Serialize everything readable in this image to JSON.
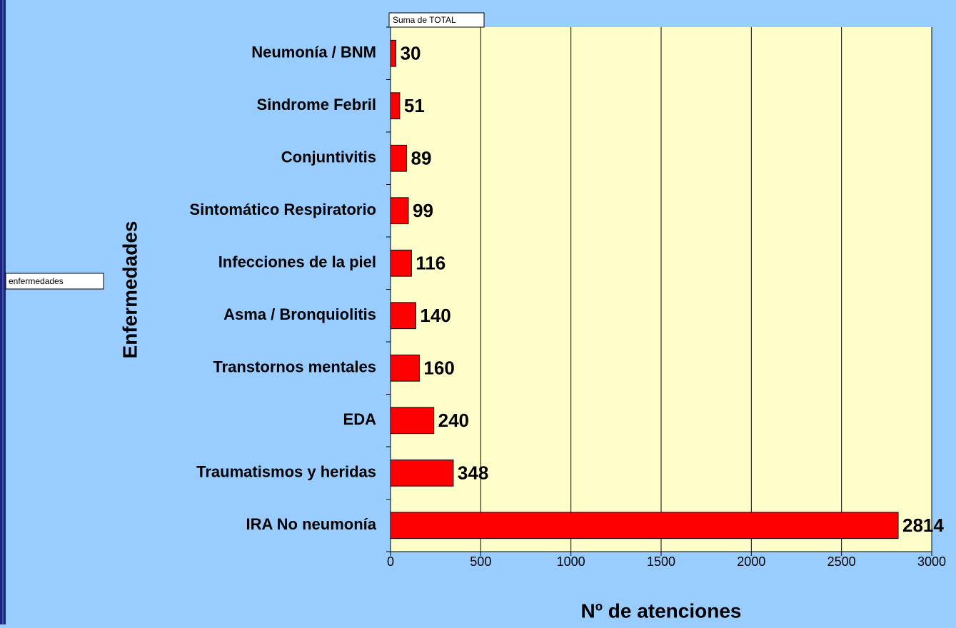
{
  "chart_data": {
    "type": "barh",
    "xlabel": "Nº de atenciones",
    "ylabel": "Enfermedades",
    "annotations": [
      "Suma de TOTAL",
      "enfermedades"
    ],
    "categories": [
      "Neumonía / BNM",
      "Sindrome Febril",
      "Conjuntivitis",
      "Sintomático Respiratorio",
      "Infecciones de la piel",
      "Asma / Bronquiolitis",
      "Transtornos mentales",
      "EDA",
      "Traumatismos y heridas",
      "IRA No neumonía"
    ],
    "values": [
      30,
      51,
      89,
      99,
      116,
      140,
      160,
      240,
      348,
      2814
    ],
    "color": "#ff0000",
    "xlim": [
      0,
      3000
    ],
    "xticks": [
      0,
      500,
      1000,
      1500,
      2000,
      2500,
      3000
    ],
    "grid": true
  }
}
